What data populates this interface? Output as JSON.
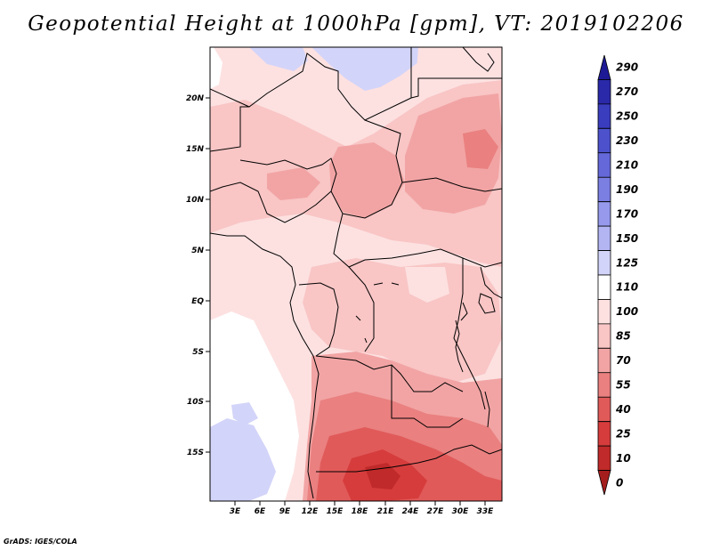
{
  "title": "Geopotential Height at 1000hPa [gpm], VT: 2019102206",
  "footer": "GrADS: IGES/COLA",
  "lat_labels": [
    "20N",
    "15N",
    "10N",
    "5N",
    "EQ",
    "5S",
    "10S",
    "15S"
  ],
  "lon_labels": [
    "3E",
    "6E",
    "9E",
    "12E",
    "15E",
    "18E",
    "21E",
    "24E",
    "27E",
    "30E",
    "33E"
  ],
  "colorbar": {
    "levels": [
      "290",
      "270",
      "250",
      "230",
      "210",
      "190",
      "170",
      "150",
      "125",
      "110",
      "100",
      "85",
      "70",
      "55",
      "40",
      "25",
      "10",
      "0"
    ],
    "colors": [
      "#1e1a96",
      "#2a29aa",
      "#3a3dbe",
      "#4d52cc",
      "#6468d8",
      "#7b7fe2",
      "#9699ec",
      "#b3b5f3",
      "#d3d4f9",
      "#ffffff",
      "#fde1e1",
      "#f9c5c5",
      "#f2a4a4",
      "#ea8080",
      "#e15a5a",
      "#d63c3c",
      "#c02a2a",
      "#a51e1e"
    ]
  }
}
